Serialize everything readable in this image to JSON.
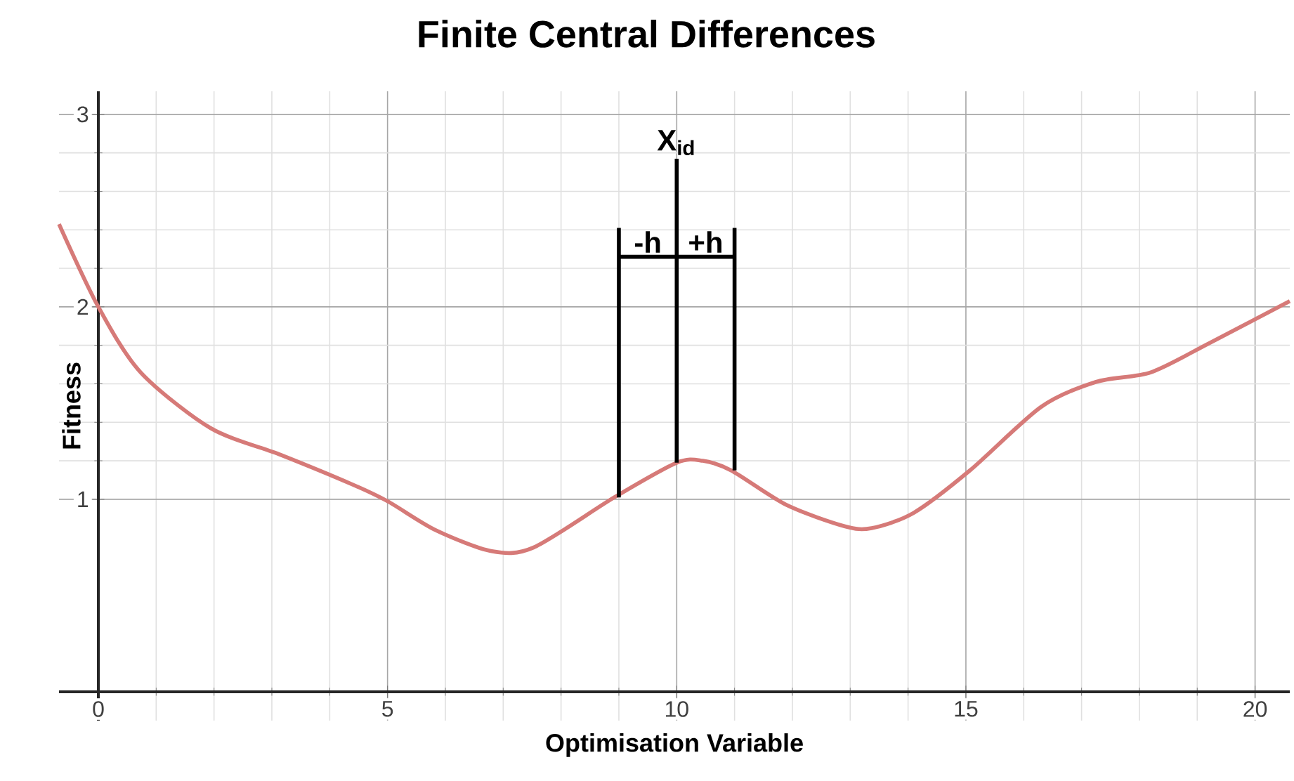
{
  "chart_data": {
    "type": "line",
    "title": "Finite Central Differences",
    "xlabel": "Optimisation Variable",
    "ylabel": "Fitness",
    "xlim": [
      -0.68,
      20.6
    ],
    "ylim": [
      -0.15,
      3.12
    ],
    "xticks": [
      0,
      5,
      10,
      15,
      20
    ],
    "yticks": [
      1,
      2,
      3
    ],
    "grid": true,
    "series": [
      {
        "color": "#d67a78",
        "x": [
          -0.68,
          0,
          0.73,
          1.94,
          3.16,
          4.37,
          5,
          5.83,
          6.8,
          7.53,
          8.92,
          10,
          10.45,
          10.94,
          11.9,
          12.9,
          13.37,
          14.1,
          15.07,
          16.3,
          17.25,
          18.2,
          19.2,
          20.6
        ],
        "values": [
          2.43,
          2.0,
          1.66,
          1.37,
          1.23,
          1.08,
          0.99,
          0.84,
          0.73,
          0.75,
          1.01,
          1.19,
          1.2,
          1.15,
          0.97,
          0.86,
          0.85,
          0.93,
          1.15,
          1.48,
          1.61,
          1.66,
          1.81,
          2.03
        ]
      },
      {
        "color": "#000000",
        "x": [
          9,
          9
        ],
        "values": [
          1.01,
          2.41
        ]
      },
      {
        "color": "#000000",
        "x": [
          10,
          10
        ],
        "values": [
          1.19,
          2.77
        ]
      },
      {
        "color": "#000000",
        "x": [
          11,
          11
        ],
        "values": [
          1.15,
          2.41
        ]
      },
      {
        "color": "#000000",
        "x": [
          9,
          11
        ],
        "values": [
          2.26,
          2.26
        ]
      }
    ],
    "annotations": [
      "X$_{id}$",
      "-h",
      "+h"
    ]
  }
}
